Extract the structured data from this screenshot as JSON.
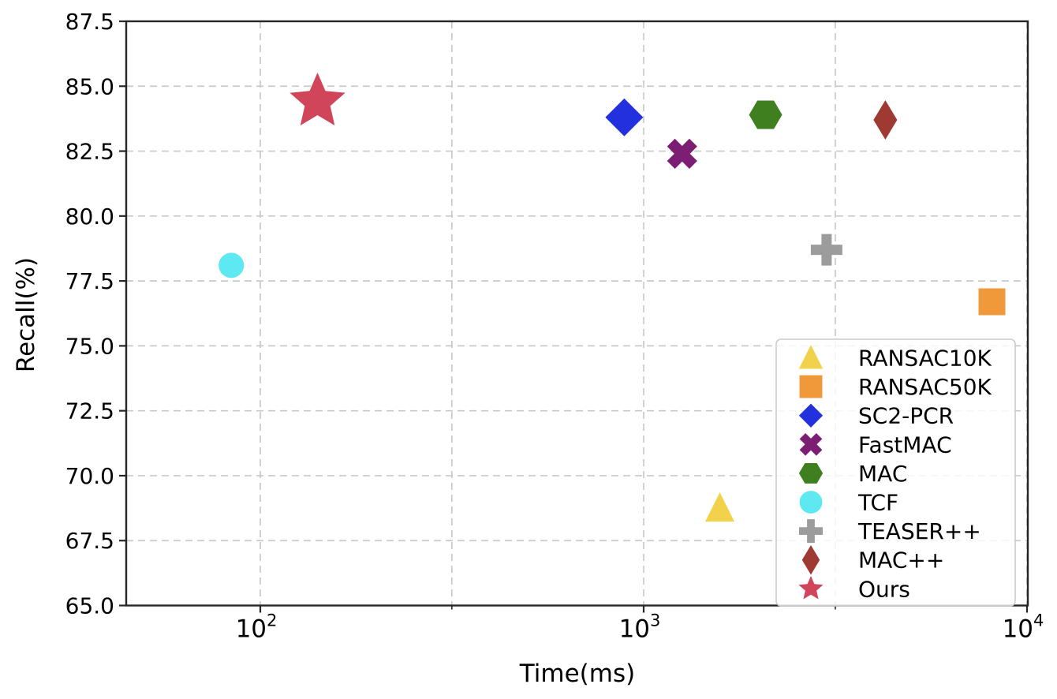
{
  "chart_data": {
    "type": "scatter",
    "title": "",
    "xlabel": "Time(ms)",
    "ylabel": "Recall(%)",
    "x_scale": "log10",
    "xlim": [
      45,
      10100
    ],
    "ylim": [
      65.0,
      87.5
    ],
    "x_ticks": [
      100,
      1000,
      10000
    ],
    "x_tick_labels": [
      "10^2",
      "10^3",
      "10^4"
    ],
    "x_minor_ticks": [
      316,
      3162
    ],
    "y_ticks": [
      65.0,
      67.5,
      70.0,
      72.5,
      75.0,
      77.5,
      80.0,
      82.5,
      85.0,
      87.5
    ],
    "grid": {
      "visible": true,
      "style": "dashed",
      "color": "#c9c9c9"
    },
    "legend": {
      "position": "lower right"
    },
    "series": [
      {
        "name": "RANSAC10K",
        "marker": "triangle",
        "color": "#F2D24B",
        "time_ms": 1580,
        "recall_pct": 68.75
      },
      {
        "name": "RANSAC50K",
        "marker": "square",
        "color": "#F0993A",
        "time_ms": 8100,
        "recall_pct": 76.7
      },
      {
        "name": "SC2-PCR",
        "marker": "diamond",
        "color": "#2230DE",
        "time_ms": 890,
        "recall_pct": 83.8
      },
      {
        "name": "FastMAC",
        "marker": "x",
        "color": "#7B1E74",
        "time_ms": 1260,
        "recall_pct": 82.4
      },
      {
        "name": "MAC",
        "marker": "hexagon",
        "color": "#3F7F20",
        "time_ms": 2080,
        "recall_pct": 83.9
      },
      {
        "name": "TCF",
        "marker": "circle",
        "color": "#5DE8F2",
        "time_ms": 84,
        "recall_pct": 78.1
      },
      {
        "name": "TEASER++",
        "marker": "plus",
        "color": "#9C9C9C",
        "time_ms": 3000,
        "recall_pct": 78.7
      },
      {
        "name": "MAC++",
        "marker": "thin-diamond",
        "color": "#9E3A32",
        "time_ms": 4270,
        "recall_pct": 83.7
      },
      {
        "name": "Ours",
        "marker": "star",
        "color": "#D0455A",
        "time_ms": 141,
        "recall_pct": 84.4
      }
    ]
  }
}
